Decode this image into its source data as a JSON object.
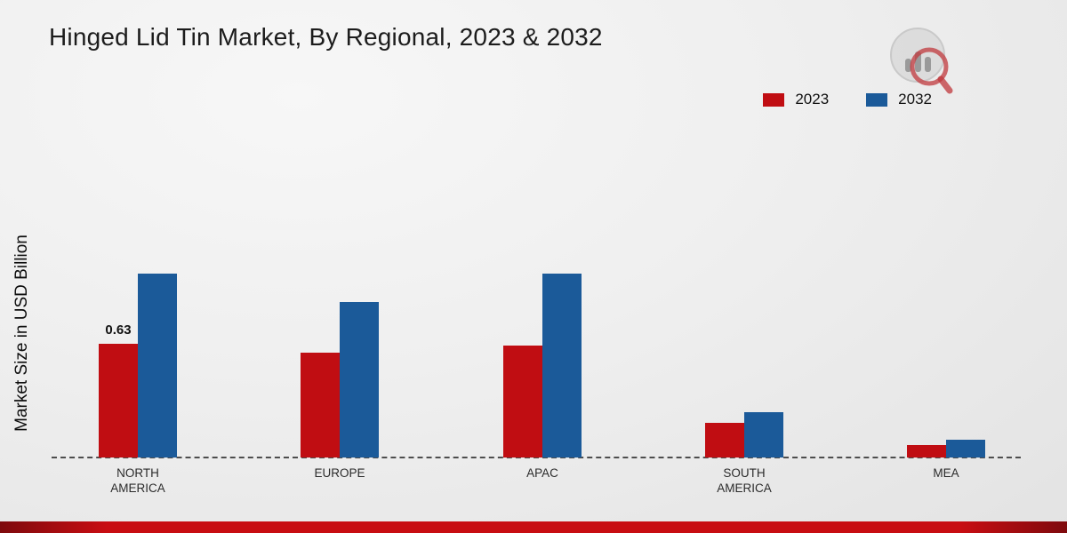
{
  "title": "Hinged Lid Tin Market, By Regional, 2023 & 2032",
  "y_axis_label": "Market Size in USD Billion",
  "legend": [
    {
      "label": "2023",
      "color": "#c00d12"
    },
    {
      "label": "2032",
      "color": "#1b5a99"
    }
  ],
  "colors": {
    "accent_red": "#c00d12",
    "accent_blue": "#1b5a99",
    "footer_red": "#c80d12",
    "background": "#ededed"
  },
  "icons": {
    "logo": "bar-chart-magnifier-logo"
  },
  "chart_data": {
    "type": "bar",
    "title": "Hinged Lid Tin Market, By Regional, 2023 & 2032",
    "ylabel": "Market Size in USD Billion",
    "xlabel": "",
    "categories": [
      "NORTH\nAMERICA",
      "EUROPE",
      "APAC",
      "SOUTH\nAMERICA",
      "MEA"
    ],
    "series": [
      {
        "name": "2023",
        "color": "#c00d12",
        "values": [
          0.63,
          0.58,
          0.62,
          0.19,
          0.07
        ]
      },
      {
        "name": "2032",
        "color": "#1b5a99",
        "values": [
          1.02,
          0.86,
          1.02,
          0.25,
          0.1
        ]
      }
    ],
    "data_labels": [
      {
        "category_index": 0,
        "series_index": 0,
        "text": "0.63"
      }
    ],
    "ylim": [
      0,
      1.25
    ],
    "grid": false,
    "baseline_style": "dashed",
    "legend_position": "top-right"
  }
}
